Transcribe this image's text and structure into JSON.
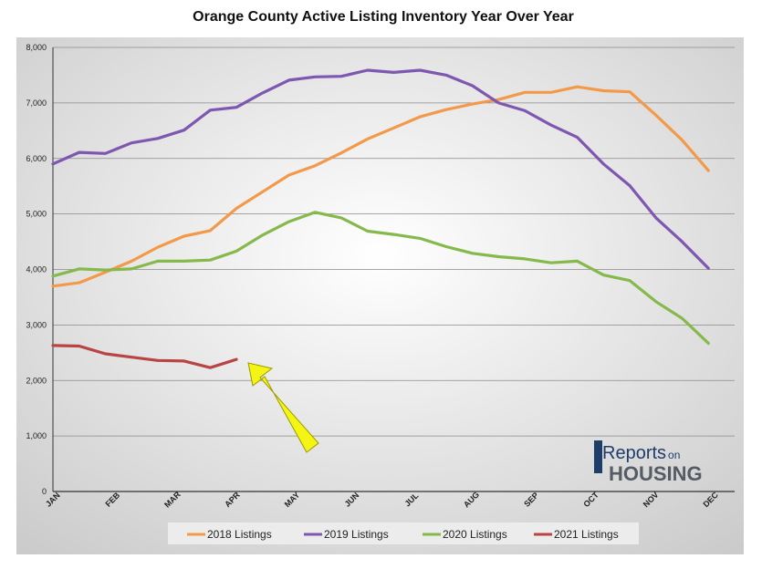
{
  "chart_data": {
    "type": "line",
    "title": "Orange County Active Listing Inventory Year Over Year",
    "xlabel": "",
    "ylabel": "",
    "ylim": [
      0,
      8000
    ],
    "y_ticks": [
      "0",
      "1,000",
      "2,000",
      "3,000",
      "4,000",
      "5,000",
      "6,000",
      "7,000",
      "8,000"
    ],
    "x_ticks": [
      "JAN",
      "FEB",
      "MAR",
      "APR",
      "MAY",
      "JUN",
      "JUL",
      "AUG",
      "SEP",
      "OCT",
      "NOV",
      "DEC"
    ],
    "grid": true,
    "legend_position": "bottom",
    "points_per_year": 27,
    "series": [
      {
        "name": "2018 Listings",
        "color": "#f39a4a",
        "values": [
          3700,
          3760,
          3950,
          4150,
          4400,
          4600,
          4700,
          5100,
          5400,
          5700,
          5870,
          6100,
          6350,
          6550,
          6750,
          6880,
          6980,
          7060,
          7190,
          7190,
          7290,
          7220,
          7200,
          6780,
          6330,
          5780,
          null
        ]
      },
      {
        "name": "2019 Listings",
        "color": "#7e57b0",
        "values": [
          5900,
          6110,
          6090,
          6280,
          6360,
          6510,
          6870,
          6920,
          7180,
          7410,
          7470,
          7480,
          7590,
          7550,
          7590,
          7500,
          7310,
          7000,
          6860,
          6600,
          6380,
          5900,
          5510,
          4930,
          4500,
          4020,
          null
        ]
      },
      {
        "name": "2020 Listings",
        "color": "#86b94c",
        "values": [
          3880,
          4010,
          3990,
          4010,
          4150,
          4150,
          4170,
          4330,
          4620,
          4860,
          5030,
          4930,
          4690,
          4630,
          4560,
          4410,
          4290,
          4230,
          4190,
          4120,
          4150,
          3900,
          3800,
          3420,
          3120,
          2670,
          null
        ]
      },
      {
        "name": "2021 Listings",
        "color": "#b84444",
        "values": [
          2630,
          2620,
          2480,
          2420,
          2360,
          2350,
          2230,
          2380
        ]
      }
    ]
  },
  "brand": {
    "logo_main": "Reports",
    "logo_small": "on",
    "logo_bottom": "HOUSING"
  },
  "colors": {
    "arrow": "#f5f515",
    "arrow_stroke": "#9a9a00",
    "plot_center": "#ffffff",
    "plot_edge": "#cbcbcb"
  }
}
